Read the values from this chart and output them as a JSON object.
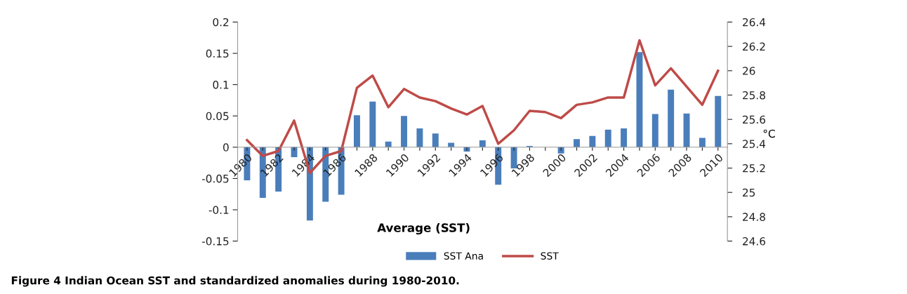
{
  "chart_data": {
    "type": "bar",
    "xlabel": "Average (SST)",
    "y2label": "°C",
    "categories": [
      "1980",
      null,
      "1982",
      null,
      "1984",
      null,
      "1986",
      null,
      "1988",
      null,
      "1990",
      null,
      "1992",
      null,
      "1994",
      null,
      "1996",
      null,
      "1998",
      null,
      "2000",
      null,
      "2002",
      null,
      "2004",
      null,
      "2006",
      null,
      "2008",
      null,
      "2010"
    ],
    "series": [
      {
        "name": "SST Ana",
        "color": "#4a7ebb",
        "values": [
          -0.053,
          -0.081,
          -0.071,
          -0.016,
          -0.117,
          -0.087,
          -0.076,
          0.051,
          0.073,
          0.009,
          0.05,
          0.03,
          0.022,
          0.007,
          -0.007,
          0.011,
          -0.06,
          -0.034,
          0.002,
          0.0,
          -0.01,
          0.013,
          0.018,
          0.028,
          0.03,
          0.152,
          0.053,
          0.092,
          0.054,
          0.015,
          0.082
        ]
      },
      {
        "name": "SST",
        "type": "line",
        "axis": "y2",
        "color": "#be4b48",
        "values": [
          25.43,
          25.3,
          25.34,
          25.59,
          25.16,
          25.3,
          25.34,
          25.86,
          25.96,
          25.7,
          25.85,
          25.78,
          25.75,
          25.69,
          25.64,
          25.71,
          25.4,
          25.51,
          25.67,
          25.66,
          25.61,
          25.72,
          25.74,
          25.78,
          25.78,
          26.25,
          25.88,
          26.02,
          25.87,
          25.72,
          26.0
        ]
      }
    ],
    "ylim": [
      -0.15,
      0.2
    ],
    "yticks": [
      -0.15,
      -0.1,
      -0.05,
      0,
      0.05,
      0.1,
      0.15,
      0.2
    ],
    "y2lim": [
      24.6,
      26.4
    ],
    "y2ticks": [
      24.6,
      24.8,
      25,
      25.2,
      25.4,
      25.6,
      25.8,
      26,
      26.2,
      26.4
    ],
    "grid": false,
    "legend": "bottom",
    "marker": "none",
    "line_style": "solid",
    "annotations": [
      "Figure 4 Indian Ocean SST and standardized anomalies during 1980-2010."
    ]
  }
}
